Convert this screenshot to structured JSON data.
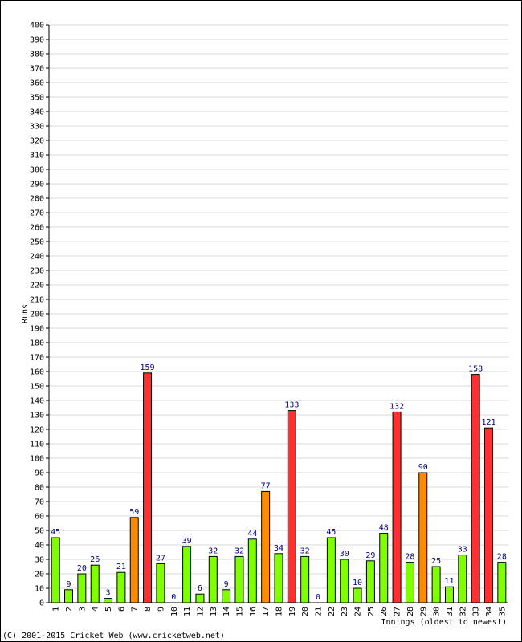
{
  "chart_data": {
    "type": "bar",
    "title": "",
    "xlabel": "Innings (oldest to newest)",
    "ylabel": "Runs",
    "ylim": [
      0,
      400
    ],
    "y_tick_step": 10,
    "grid": true,
    "categories": [
      "1",
      "2",
      "3",
      "4",
      "5",
      "6",
      "7",
      "8",
      "9",
      "10",
      "11",
      "12",
      "13",
      "14",
      "15",
      "16",
      "17",
      "18",
      "19",
      "20",
      "21",
      "22",
      "23",
      "24",
      "25",
      "26",
      "27",
      "28",
      "29",
      "30",
      "31",
      "32",
      "33",
      "34",
      "35"
    ],
    "values": [
      45,
      9,
      20,
      26,
      3,
      21,
      59,
      159,
      27,
      0,
      39,
      6,
      32,
      9,
      32,
      44,
      77,
      34,
      133,
      32,
      0,
      45,
      30,
      10,
      29,
      48,
      132,
      28,
      90,
      25,
      11,
      33,
      158,
      121,
      28
    ],
    "color_bands": {
      "below_50": "#80ff00",
      "from_50_to_99": "#ff8c00",
      "from_100": "#ff3030"
    },
    "data_label_color": "#000080",
    "grid_color": "#d8d8d8"
  },
  "footer": {
    "copyright": "(C) 2001-2015 Cricket Web (www.cricketweb.net)"
  }
}
